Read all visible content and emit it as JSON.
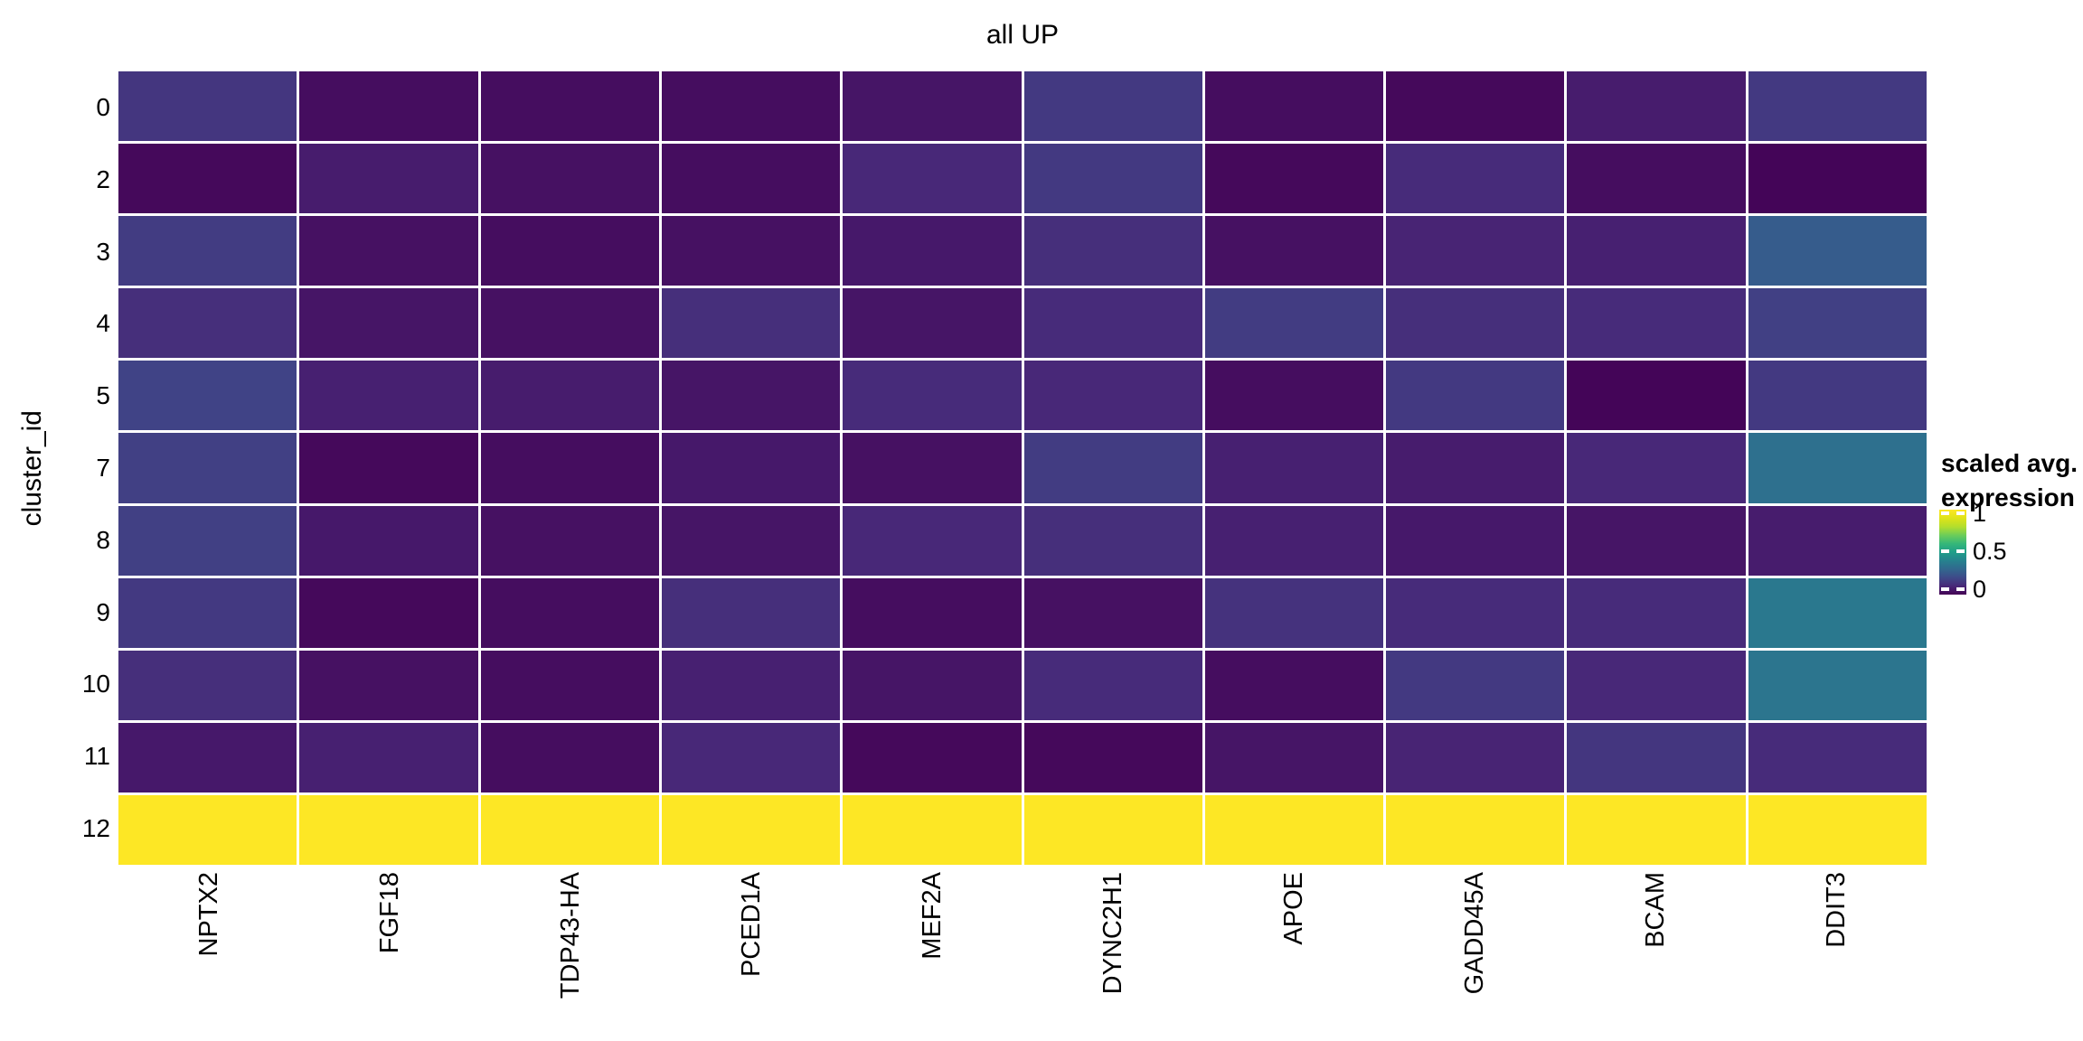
{
  "figure": {
    "title": "all UP",
    "y_axis_title": "cluster_id"
  },
  "legend": {
    "title_line1": "scaled avg.",
    "title_line2": "expression",
    "ticks": [
      {
        "label": "1",
        "value": 1
      },
      {
        "label": "0.5",
        "value": 0.5
      },
      {
        "label": "0",
        "value": 0
      }
    ]
  },
  "chart_data": {
    "type": "heatmap",
    "title": "all UP",
    "xlabel": "",
    "ylabel": "cluster_id",
    "legend_title": "scaled avg. expression",
    "legend_position": "right",
    "grid": false,
    "value_domain": [
      0,
      1
    ],
    "colormap": "viridis",
    "colormap_stops": [
      [
        0.0,
        "#440154"
      ],
      [
        0.1,
        "#482878"
      ],
      [
        0.2,
        "#3E4A89"
      ],
      [
        0.3,
        "#31688E"
      ],
      [
        0.4,
        "#26828E"
      ],
      [
        0.5,
        "#1F9E89"
      ],
      [
        0.6,
        "#35B779"
      ],
      [
        0.7,
        "#6DCD59"
      ],
      [
        0.8,
        "#B4DE2C"
      ],
      [
        0.9,
        "#DFE318"
      ],
      [
        1.0,
        "#FDE725"
      ]
    ],
    "columns": [
      "NPTX2",
      "FGF18",
      "TDP43-HA",
      "PCED1A",
      "MEF2A",
      "DYNC2H1",
      "APOE",
      "GADD45A",
      "BCAM",
      "DDIT3"
    ],
    "rows": [
      "0",
      "2",
      "3",
      "4",
      "5",
      "7",
      "8",
      "9",
      "10",
      "11",
      "12"
    ],
    "values": [
      [
        0.14,
        0.03,
        0.03,
        0.03,
        0.05,
        0.15,
        0.03,
        0.02,
        0.07,
        0.15
      ],
      [
        0.02,
        0.07,
        0.04,
        0.03,
        0.1,
        0.15,
        0.02,
        0.11,
        0.03,
        0.01
      ],
      [
        0.16,
        0.04,
        0.03,
        0.04,
        0.06,
        0.12,
        0.04,
        0.09,
        0.08,
        0.26
      ],
      [
        0.12,
        0.05,
        0.04,
        0.12,
        0.05,
        0.11,
        0.16,
        0.12,
        0.11,
        0.17
      ],
      [
        0.18,
        0.08,
        0.07,
        0.05,
        0.11,
        0.1,
        0.03,
        0.15,
        0.01,
        0.15
      ],
      [
        0.17,
        0.02,
        0.03,
        0.06,
        0.04,
        0.16,
        0.08,
        0.07,
        0.1,
        0.33
      ],
      [
        0.17,
        0.06,
        0.04,
        0.05,
        0.1,
        0.12,
        0.08,
        0.06,
        0.05,
        0.07
      ],
      [
        0.15,
        0.02,
        0.03,
        0.12,
        0.03,
        0.04,
        0.13,
        0.11,
        0.11,
        0.36
      ],
      [
        0.12,
        0.04,
        0.03,
        0.08,
        0.05,
        0.11,
        0.03,
        0.15,
        0.1,
        0.35
      ],
      [
        0.06,
        0.08,
        0.03,
        0.1,
        0.02,
        0.02,
        0.05,
        0.09,
        0.14,
        0.11
      ],
      [
        1,
        1,
        1,
        1,
        1,
        1,
        1,
        1,
        1,
        1
      ]
    ]
  }
}
